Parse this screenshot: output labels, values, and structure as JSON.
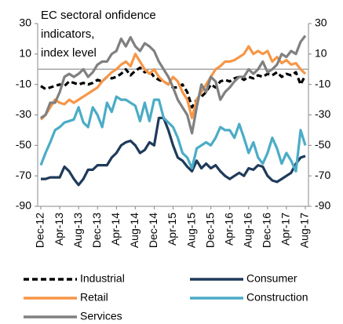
{
  "chart_data": {
    "type": "line",
    "title": [
      "EC sectoral onfidence",
      "indicators,",
      "index level"
    ],
    "categories": [
      "Dec-12",
      null,
      null,
      null,
      "Apr-13",
      null,
      null,
      null,
      "Aug-13",
      null,
      null,
      null,
      "Dec-13",
      null,
      null,
      null,
      "Apr-14",
      null,
      null,
      null,
      "Aug-14",
      null,
      null,
      null,
      "Dec-14",
      null,
      null,
      null,
      "Apr-15",
      null,
      null,
      null,
      "Aug-15",
      null,
      null,
      null,
      "Dec-15",
      null,
      null,
      null,
      "Apr-16",
      null,
      null,
      null,
      "Aug-16",
      null,
      null,
      null,
      "Dec-16",
      null,
      null,
      null,
      "Apr-17",
      null,
      null,
      null,
      "Aug-17"
    ],
    "series": [
      {
        "name": "Industrial",
        "color": "#000000",
        "dash": true,
        "values": [
          -11,
          -13,
          -12,
          -11,
          -10,
          -11,
          -8,
          -9,
          -10,
          -9,
          -10,
          -9,
          -7,
          -8,
          -5,
          -6,
          -5,
          -3,
          0,
          -4,
          -1,
          1,
          -2,
          -1,
          -5,
          -7,
          -8,
          -10,
          -12,
          -12,
          -10,
          -15,
          -25,
          -20,
          -18,
          -15,
          -10,
          -12,
          -8,
          -7,
          -8,
          -6,
          -5,
          -7,
          -5,
          -6,
          -4,
          -5,
          -3,
          -4,
          -2,
          -5,
          -3,
          -4,
          -2,
          -10,
          -4
        ]
      },
      {
        "name": "Consumer",
        "color": "#1f3a5a",
        "values": [
          -72,
          -72,
          -71,
          -71,
          -71,
          -64,
          -67,
          -72,
          -76,
          -72,
          -66,
          -66,
          -63,
          -63,
          -63,
          -58,
          -55,
          -50,
          -48,
          -47,
          -50,
          -55,
          -53,
          -48,
          -50,
          -32,
          -32,
          -40,
          -50,
          -58,
          -60,
          -64,
          -67,
          -60,
          -65,
          -62,
          -65,
          -63,
          -67,
          -70,
          -72,
          -70,
          -68,
          -70,
          -65,
          -66,
          -63,
          -64,
          -70,
          -73,
          -74,
          -72,
          -70,
          -68,
          -62,
          -58,
          -57
        ]
      },
      {
        "name": "Retail",
        "color": "#f79646",
        "values": [
          -33,
          -30,
          -25,
          -20,
          -22,
          -23,
          -20,
          -22,
          -20,
          -18,
          -16,
          -14,
          -12,
          -8,
          -5,
          -2,
          0,
          3,
          5,
          2,
          10,
          5,
          0,
          -3,
          0,
          -5,
          -8,
          -10,
          -5,
          -8,
          -15,
          -20,
          -32,
          -20,
          -15,
          -10,
          -5,
          0,
          2,
          5,
          5,
          6,
          8,
          10,
          15,
          10,
          12,
          10,
          12,
          5,
          8,
          4,
          6,
          3,
          4,
          0,
          -3
        ]
      },
      {
        "name": "Construction",
        "color": "#4bacc6",
        "values": [
          -63,
          -55,
          -48,
          -40,
          -38,
          -35,
          -34,
          -33,
          -25,
          -35,
          -38,
          -25,
          -30,
          -38,
          -22,
          -28,
          -18,
          -20,
          -20,
          -22,
          -24,
          -34,
          -22,
          -34,
          -20,
          -20,
          -32,
          -35,
          -38,
          -45,
          -55,
          -58,
          -65,
          -52,
          -50,
          -48,
          -50,
          -45,
          -38,
          -40,
          -40,
          -45,
          -36,
          -45,
          -55,
          -48,
          -58,
          -62,
          -55,
          -45,
          -52,
          -62,
          -55,
          -60,
          -67,
          -40,
          -50
        ]
      },
      {
        "name": "Services",
        "color": "#808080",
        "values": [
          -32,
          -30,
          -22,
          -22,
          -15,
          -5,
          -3,
          -5,
          -3,
          0,
          -5,
          -2,
          3,
          5,
          5,
          10,
          12,
          20,
          15,
          21,
          15,
          12,
          17,
          15,
          12,
          5,
          0,
          -5,
          -12,
          -20,
          -25,
          -30,
          -42,
          -25,
          -10,
          -15,
          -5,
          -8,
          -20,
          -15,
          -12,
          -8,
          -5,
          -5,
          0,
          -3,
          0,
          5,
          -2,
          0,
          3,
          10,
          8,
          12,
          10,
          18,
          22
        ]
      }
    ],
    "ylim": [
      -90,
      30
    ],
    "yticks": [
      -90,
      -70,
      -50,
      -30,
      -10,
      10,
      30
    ],
    "y2lim": [
      -90,
      30
    ],
    "y2ticks": [
      -90,
      -70,
      -50,
      -30,
      -10,
      10,
      30
    ],
    "reference_line": 0,
    "legend": "bottom"
  }
}
